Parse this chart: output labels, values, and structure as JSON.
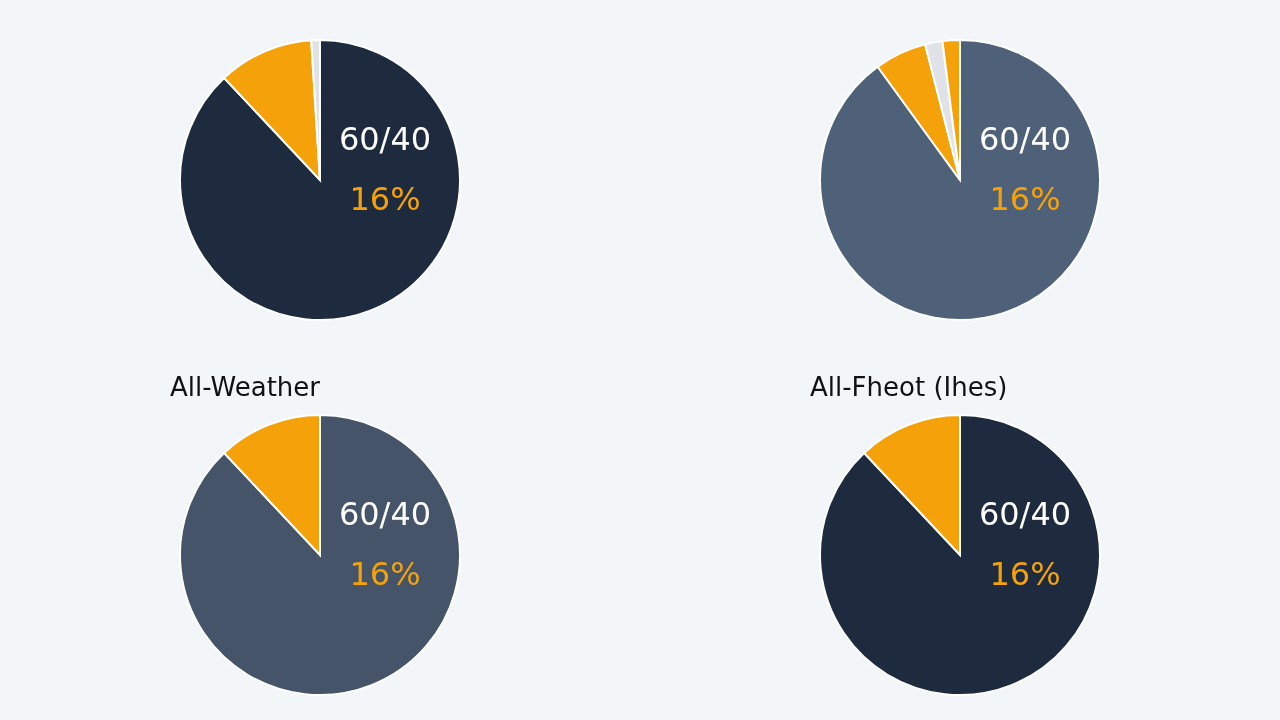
{
  "chart_data": [
    {
      "type": "pie",
      "categories": [
        null,
        null,
        null
      ],
      "values": [
        88,
        11,
        1
      ],
      "colors": [
        "#1e2b3e",
        "#f5a20a",
        "#dfe3e8"
      ],
      "annotations": [
        "60/40",
        "16%"
      ]
    },
    {
      "type": "pie",
      "categories": [
        null,
        null,
        null,
        null
      ],
      "values": [
        90,
        6,
        2,
        2
      ],
      "colors": [
        "#4f6178",
        "#f5a20a",
        "#dfe3e8",
        "#f5a20a"
      ],
      "annotations": [
        "60/40",
        "16%"
      ]
    },
    {
      "type": "pie",
      "title": "All-Weather",
      "categories": [
        null,
        null
      ],
      "values": [
        88,
        12
      ],
      "colors": [
        "#455468",
        "#f5a20a"
      ],
      "annotations": [
        "60/40",
        "16%"
      ]
    },
    {
      "type": "pie",
      "title": "All-Fheot (Ihes)",
      "categories": [
        null,
        null
      ],
      "values": [
        88,
        12
      ],
      "colors": [
        "#1e2b3e",
        "#f5a20a"
      ],
      "annotations": [
        "60/40",
        "16%"
      ]
    }
  ]
}
